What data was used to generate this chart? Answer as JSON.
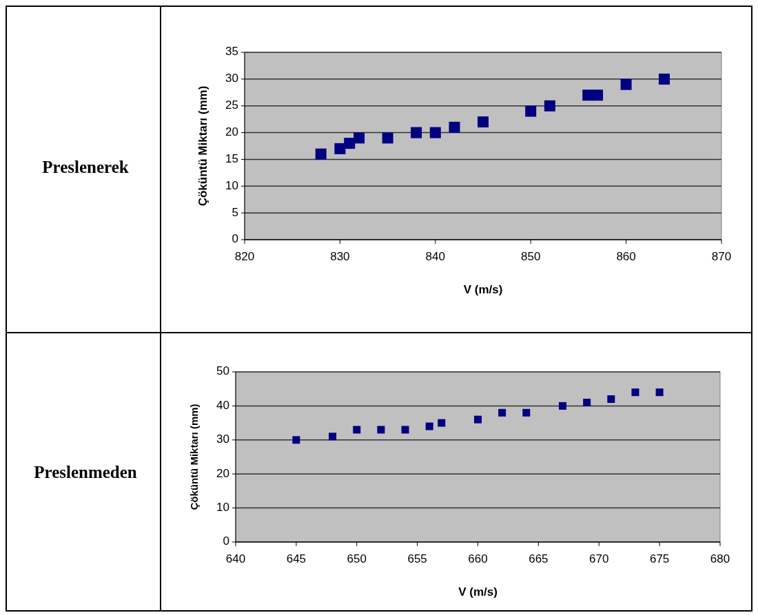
{
  "chart_data": [
    {
      "type": "scatter",
      "title": "Preslenerek",
      "xlabel": "V (m/s)",
      "ylabel": "Çöküntü Miktarı (mm)",
      "x": [
        828,
        830,
        831,
        832,
        835,
        838,
        840,
        842,
        845,
        850,
        852,
        856,
        857,
        860,
        864
      ],
      "values": [
        16,
        17,
        18,
        19,
        19,
        20,
        20,
        21,
        22,
        24,
        25,
        27,
        27,
        29,
        30
      ],
      "color": "#000080",
      "marker": "square",
      "xlim": [
        820,
        870
      ],
      "xticks": [
        820,
        830,
        840,
        850,
        860,
        870
      ],
      "ylim": [
        0,
        35
      ],
      "yticks": [
        0,
        5,
        10,
        15,
        20,
        25,
        30,
        35
      ],
      "grid": "y"
    },
    {
      "type": "scatter",
      "title": "Preslenmeden",
      "xlabel": "V (m/s)",
      "ylabel": "Çöküntü Miktarı (mm)",
      "x": [
        645,
        648,
        650,
        652,
        654,
        656,
        657,
        660,
        662,
        664,
        667,
        669,
        671,
        673,
        675
      ],
      "values": [
        30,
        31,
        33,
        33,
        33,
        34,
        35,
        36,
        38,
        38,
        40,
        41,
        42,
        44,
        44
      ],
      "color": "#000080",
      "marker": "square",
      "xlim": [
        640,
        680
      ],
      "xticks": [
        640,
        645,
        650,
        655,
        660,
        665,
        670,
        675,
        680
      ],
      "ylim": [
        0,
        50
      ],
      "yticks": [
        0,
        10,
        20,
        30,
        40,
        50
      ],
      "grid": "y"
    }
  ]
}
